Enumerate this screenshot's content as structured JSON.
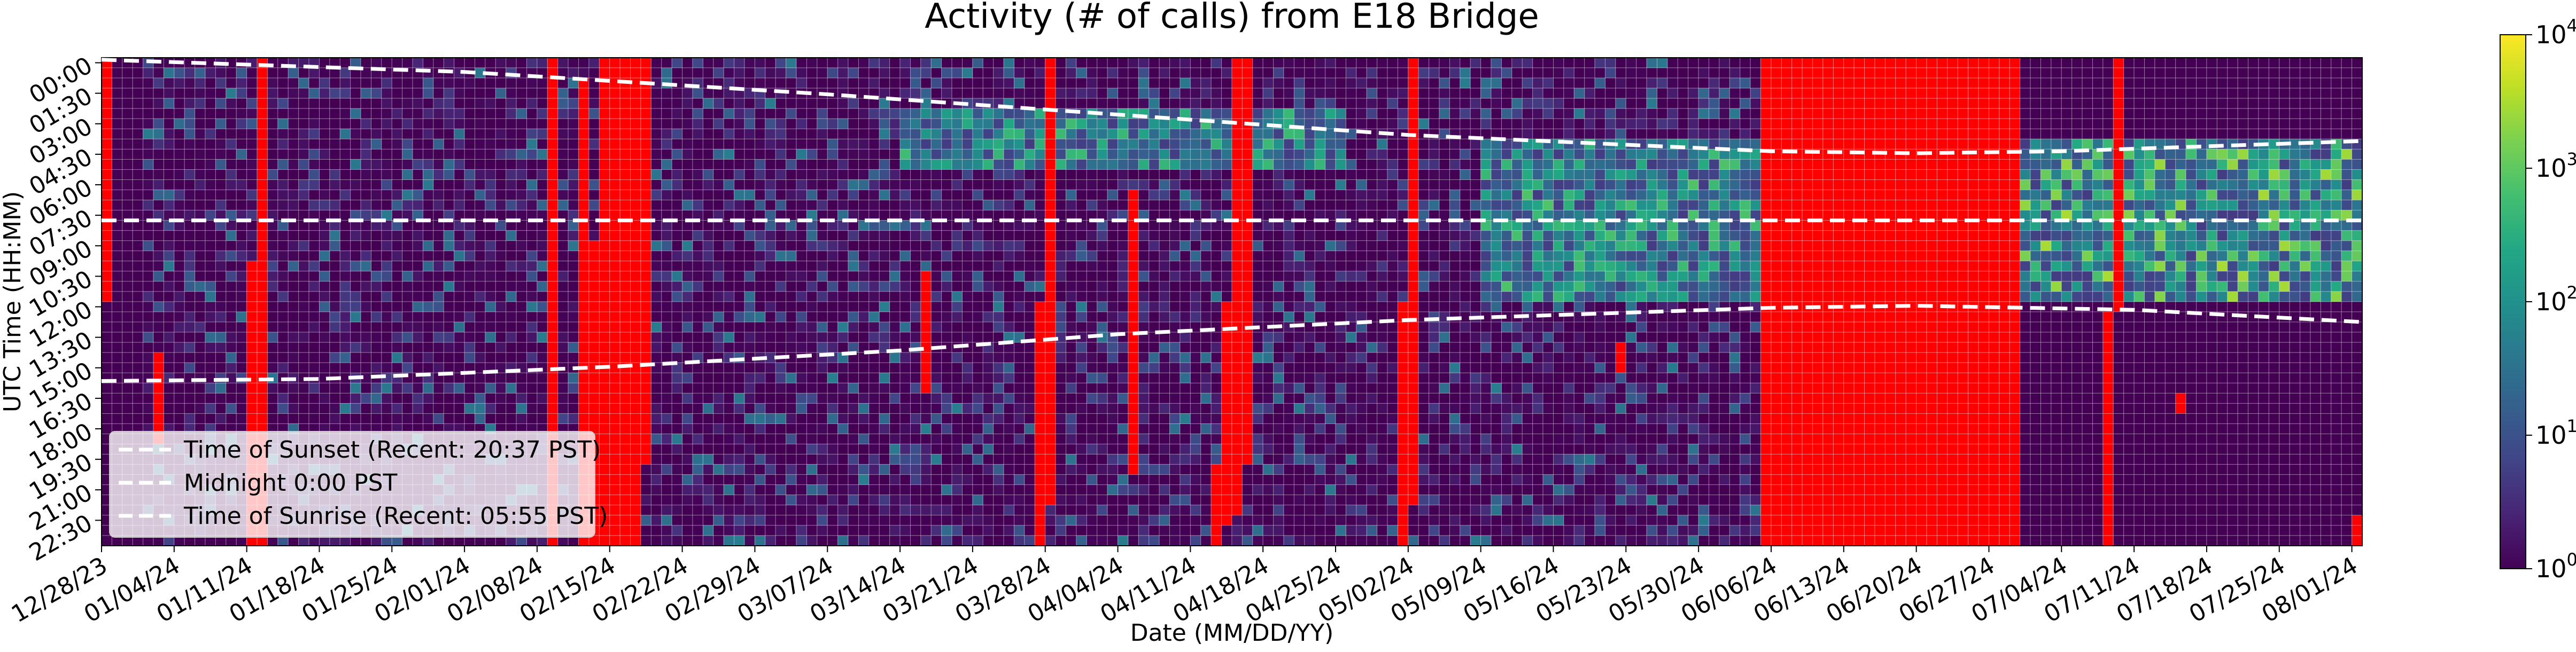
{
  "chart_data": {
    "type": "heatmap",
    "title": "Activity (# of calls) from E18 Bridge",
    "xlabel": "Date (MM/DD/YY)",
    "ylabel": "UTC Time (HH:MM)",
    "x_tick_labels": [
      "12/28/23",
      "01/04/24",
      "01/11/24",
      "01/18/24",
      "01/25/24",
      "02/01/24",
      "02/08/24",
      "02/15/24",
      "02/22/24",
      "02/29/24",
      "03/07/24",
      "03/14/24",
      "03/21/24",
      "03/28/24",
      "04/04/24",
      "04/11/24",
      "04/18/24",
      "04/25/24",
      "05/02/24",
      "05/09/24",
      "05/16/24",
      "05/23/24",
      "05/30/24",
      "06/06/24",
      "06/13/24",
      "06/20/24",
      "06/27/24",
      "07/04/24",
      "07/11/24",
      "07/18/24",
      "07/25/24",
      "08/01/24"
    ],
    "y_tick_labels": [
      "00:00",
      "01:30",
      "03:00",
      "04:30",
      "06:00",
      "07:30",
      "09:00",
      "10:30",
      "12:00",
      "13:30",
      "15:00",
      "16:30",
      "18:00",
      "19:30",
      "21:00",
      "22:30"
    ],
    "x_range": [
      "12/28/23",
      "08/02/24"
    ],
    "y_range": [
      "00:00",
      "24:00"
    ],
    "y_bin_minutes": 30,
    "colorbar": {
      "scale": "log",
      "range": [
        1,
        10000
      ],
      "colormap": "viridis",
      "tick_labels": [
        "10^0",
        "10^1",
        "10^2",
        "10^3",
        "10^4"
      ]
    },
    "no_data_color": "#ff0000",
    "legend": {
      "placement": "lower-left",
      "entries": [
        "Time of Sunset (Recent: 20:37 PST)",
        "Midnight 0:00 PST",
        "Time of Sunrise (Recent: 05:55 PST)"
      ],
      "line_color": "#ffffff",
      "line_style": "dashed"
    },
    "reference_lines_utc_hours": {
      "sunset": [
        {
          "date": "12/28/23",
          "hour": 0.1
        },
        {
          "date": "02/01/24",
          "hour": 0.7
        },
        {
          "date": "03/07/24",
          "hour": 1.8
        },
        {
          "date": "04/04/24",
          "hour": 2.8
        },
        {
          "date": "05/02/24",
          "hour": 3.8
        },
        {
          "date": "06/06/24",
          "hour": 4.6
        },
        {
          "date": "06/20/24",
          "hour": 4.7
        },
        {
          "date": "07/04/24",
          "hour": 4.6
        },
        {
          "date": "08/02/24",
          "hour": 4.1
        }
      ],
      "midnight": [
        {
          "date": "12/28/23",
          "hour": 8.0
        },
        {
          "date": "08/02/24",
          "hour": 8.0
        }
      ],
      "sunrise": [
        {
          "date": "12/28/23",
          "hour": 15.9
        },
        {
          "date": "01/18/24",
          "hour": 15.8
        },
        {
          "date": "02/15/24",
          "hour": 15.2
        },
        {
          "date": "03/14/24",
          "hour": 14.4
        },
        {
          "date": "04/04/24",
          "hour": 13.6
        },
        {
          "date": "05/02/24",
          "hour": 12.9
        },
        {
          "date": "06/06/24",
          "hour": 12.3
        },
        {
          "date": "06/20/24",
          "hour": 12.2
        },
        {
          "date": "07/11/24",
          "hour": 12.4
        },
        {
          "date": "08/02/24",
          "hour": 13.0
        }
      ]
    },
    "no_data_periods": [
      {
        "date": "12/28/23",
        "hour_start": 0,
        "hour_end": 12
      },
      {
        "date": "01/02/24",
        "hour_start": 14.5,
        "hour_end": 19
      },
      {
        "date": "01/11/24",
        "hour_start": 10,
        "hour_end": 24
      },
      {
        "date": "01/12/24",
        "hour_start": 0,
        "hour_end": 24
      },
      {
        "date": "02/09/24",
        "hour_start": 0,
        "hour_end": 24
      },
      {
        "date": "02/12/24",
        "hour_start": 1,
        "hour_end": 24
      },
      {
        "date": "02/13/24",
        "hour_start": 9,
        "hour_end": 24
      },
      {
        "date": "02/14/24",
        "hour_start": 0,
        "hour_end": 24
      },
      {
        "date": "02/15/24",
        "hour_start": 0,
        "hour_end": 24
      },
      {
        "date": "02/16/24",
        "hour_start": 0,
        "hour_end": 24
      },
      {
        "date": "02/17/24",
        "hour_start": 0,
        "hour_end": 24
      },
      {
        "date": "02/18/24",
        "hour_start": 0,
        "hour_end": 20
      },
      {
        "date": "03/16/24",
        "hour_start": 10.5,
        "hour_end": 16.5
      },
      {
        "date": "03/27/24",
        "hour_start": 12,
        "hour_end": 24
      },
      {
        "date": "03/28/24",
        "hour_start": 0,
        "hour_end": 22
      },
      {
        "date": "04/05/24",
        "hour_start": 6.5,
        "hour_end": 20.5
      },
      {
        "date": "04/13/24",
        "hour_start": 20,
        "hour_end": 24
      },
      {
        "date": "04/14/24",
        "hour_start": 12,
        "hour_end": 23
      },
      {
        "date": "04/15/24",
        "hour_start": 0,
        "hour_end": 22.5
      },
      {
        "date": "04/16/24",
        "hour_start": 0,
        "hour_end": 20
      },
      {
        "date": "05/01/24",
        "hour_start": 12,
        "hour_end": 24
      },
      {
        "date": "05/02/24",
        "hour_start": 0,
        "hour_end": 22
      },
      {
        "date": "05/22/24",
        "hour_start": 14,
        "hour_end": 15.5
      },
      {
        "date": "06/05/24",
        "hour_start": 0,
        "hour_end": 24
      },
      {
        "date": "06/06/24",
        "hour_start": 0,
        "hour_end": 24
      },
      {
        "date": "06/06/24",
        "hour_start": 0,
        "hour_end": 24
      },
      {
        "date": "06/07/24",
        "hour_start": 0,
        "hour_end": 24
      },
      {
        "date": "06/08/24",
        "hour_start": 0,
        "hour_end": 24
      },
      {
        "date": "06/09/24",
        "hour_start": 0,
        "hour_end": 24
      },
      {
        "date": "06/10/24",
        "hour_start": 0,
        "hour_end": 24
      },
      {
        "date": "06/11/24",
        "hour_start": 0,
        "hour_end": 24
      },
      {
        "date": "06/12/24",
        "hour_start": 0,
        "hour_end": 24
      },
      {
        "date": "06/13/24",
        "hour_start": 0,
        "hour_end": 24
      },
      {
        "date": "06/14/24",
        "hour_start": 0,
        "hour_end": 24
      },
      {
        "date": "06/15/24",
        "hour_start": 0,
        "hour_end": 24
      },
      {
        "date": "06/16/24",
        "hour_start": 0,
        "hour_end": 24
      },
      {
        "date": "06/17/24",
        "hour_start": 0,
        "hour_end": 24
      },
      {
        "date": "06/18/24",
        "hour_start": 0,
        "hour_end": 24
      },
      {
        "date": "06/19/24",
        "hour_start": 0,
        "hour_end": 24
      },
      {
        "date": "06/20/24",
        "hour_start": 0,
        "hour_end": 24
      },
      {
        "date": "06/21/24",
        "hour_start": 0,
        "hour_end": 24
      },
      {
        "date": "06/22/24",
        "hour_start": 0,
        "hour_end": 24
      },
      {
        "date": "06/23/24",
        "hour_start": 0,
        "hour_end": 24
      },
      {
        "date": "06/24/24",
        "hour_start": 0,
        "hour_end": 24
      },
      {
        "date": "06/25/24",
        "hour_start": 0,
        "hour_end": 24
      },
      {
        "date": "06/26/24",
        "hour_start": 0,
        "hour_end": 24
      },
      {
        "date": "06/27/24",
        "hour_start": 0,
        "hour_end": 24
      },
      {
        "date": "06/28/24",
        "hour_start": 0,
        "hour_end": 24
      },
      {
        "date": "06/29/24",
        "hour_start": 0,
        "hour_end": 24
      },
      {
        "date": "07/08/24",
        "hour_start": 12.5,
        "hour_end": 24
      },
      {
        "date": "07/09/24",
        "hour_start": 0,
        "hour_end": 12.5
      },
      {
        "date": "07/15/24",
        "hour_start": 16.5,
        "hour_end": 17.5
      },
      {
        "date": "08/01/24",
        "hour_start": 22.5,
        "hour_end": 24
      }
    ],
    "high_activity_regions": [
      {
        "date_start": "03/14/24",
        "date_end": "04/25/24",
        "hour_start": 2.5,
        "hour_end": 5.5,
        "calls_range": [
          5,
          600
        ]
      },
      {
        "date_start": "05/09/24",
        "date_end": "06/06/24",
        "hour_start": 4,
        "hour_end": 12,
        "calls_range": [
          5,
          800
        ]
      },
      {
        "date_start": "06/30/24",
        "date_end": "08/02/24",
        "hour_start": 4,
        "hour_end": 12,
        "calls_range": [
          5,
          3000
        ]
      },
      {
        "date_start": "01/01/24",
        "date_end": "06/05/24",
        "hour_start": 0,
        "hour_end": 24,
        "calls_range": [
          1,
          50
        ]
      }
    ]
  }
}
